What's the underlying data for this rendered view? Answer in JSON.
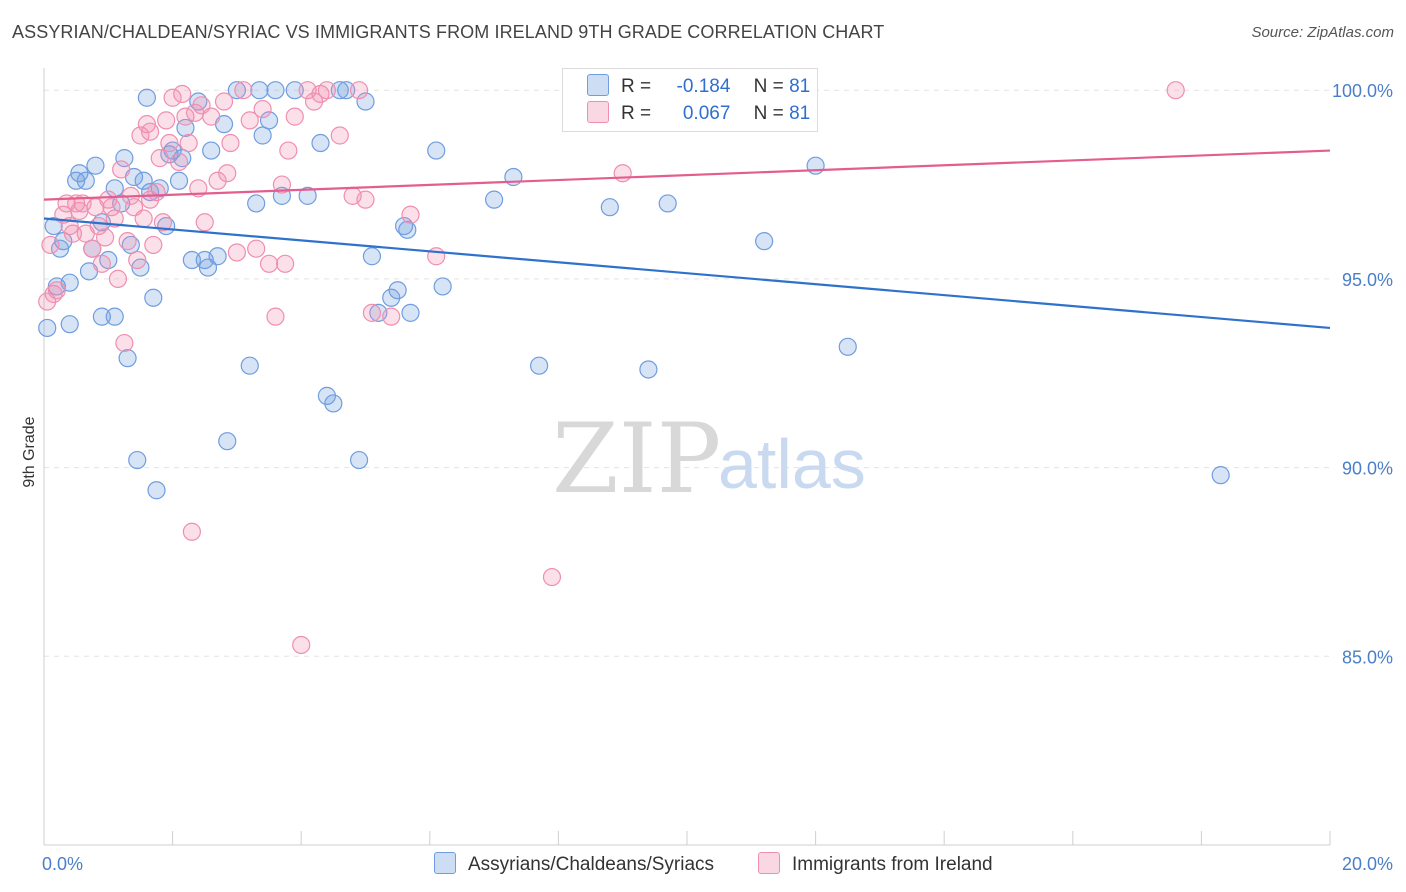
{
  "title": "ASSYRIAN/CHALDEAN/SYRIAC VS IMMIGRANTS FROM IRELAND 9TH GRADE CORRELATION CHART",
  "source": "Source: ZipAtlas.com",
  "watermark": {
    "zip": "ZIP",
    "atlas": "atlas"
  },
  "legend": {
    "r_label": "R =",
    "n_label": "N =",
    "rows": [
      {
        "r": "-0.184",
        "n": "81"
      },
      {
        "r": "0.067",
        "n": "81"
      }
    ]
  },
  "chart_data": {
    "type": "scatter",
    "ylabel": "9th Grade",
    "xlim": [
      0,
      20
    ],
    "ylim": [
      80,
      100.8
    ],
    "y_ticks": [
      {
        "value": 100,
        "label": "100.0%"
      },
      {
        "value": 95,
        "label": "95.0%"
      },
      {
        "value": 90,
        "label": "90.0%"
      },
      {
        "value": 85,
        "label": "85.0%"
      }
    ],
    "x_tick_labels": [
      {
        "value": 0,
        "label": "0.0%"
      },
      {
        "value": 20,
        "label": "20.0%"
      }
    ],
    "x_minor_ticks": [
      0,
      2,
      4,
      6,
      8,
      10,
      12,
      14,
      16,
      18,
      20
    ],
    "grid": true,
    "legend_placement": "top-center",
    "series": [
      {
        "name": "Assyrians/Chaldeans/Syriacs",
        "color": "#6f9de0",
        "fill": "rgba(111,157,224,0.28)",
        "trend": {
          "x": [
            0,
            20
          ],
          "y": [
            96.6,
            93.7
          ],
          "color": "#2f72cc"
        },
        "points": [
          [
            0.15,
            96.4
          ],
          [
            0.2,
            94.8
          ],
          [
            0.25,
            95.8
          ],
          [
            0.3,
            96.0
          ],
          [
            0.4,
            93.8
          ],
          [
            0.4,
            94.9
          ],
          [
            0.5,
            97.6
          ],
          [
            0.55,
            97.8
          ],
          [
            0.65,
            97.6
          ],
          [
            0.7,
            95.2
          ],
          [
            0.75,
            95.8
          ],
          [
            0.8,
            98.0
          ],
          [
            0.9,
            96.5
          ],
          [
            0.9,
            94.0
          ],
          [
            1.0,
            95.5
          ],
          [
            1.1,
            97.4
          ],
          [
            1.1,
            94.0
          ],
          [
            1.2,
            97.0
          ],
          [
            1.25,
            98.2
          ],
          [
            1.3,
            92.9
          ],
          [
            1.35,
            95.9
          ],
          [
            1.4,
            97.7
          ],
          [
            1.45,
            90.2
          ],
          [
            1.5,
            95.3
          ],
          [
            1.55,
            97.6
          ],
          [
            1.6,
            99.8
          ],
          [
            1.65,
            97.3
          ],
          [
            1.7,
            94.5
          ],
          [
            1.75,
            89.4
          ],
          [
            1.8,
            97.4
          ],
          [
            1.9,
            96.4
          ],
          [
            1.95,
            98.3
          ],
          [
            2.0,
            98.4
          ],
          [
            2.1,
            97.6
          ],
          [
            2.15,
            98.2
          ],
          [
            2.2,
            99.0
          ],
          [
            2.3,
            95.5
          ],
          [
            2.4,
            99.7
          ],
          [
            2.5,
            95.5
          ],
          [
            2.55,
            95.3
          ],
          [
            2.6,
            98.4
          ],
          [
            2.7,
            95.6
          ],
          [
            2.8,
            99.1
          ],
          [
            2.85,
            90.7
          ],
          [
            3.0,
            100.0
          ],
          [
            3.2,
            92.7
          ],
          [
            3.3,
            97.0
          ],
          [
            3.35,
            100.0
          ],
          [
            3.4,
            98.8
          ],
          [
            3.5,
            99.2
          ],
          [
            3.7,
            97.2
          ],
          [
            3.9,
            100.0
          ],
          [
            4.1,
            97.2
          ],
          [
            4.3,
            98.6
          ],
          [
            4.4,
            91.9
          ],
          [
            4.5,
            91.7
          ],
          [
            4.7,
            100.0
          ],
          [
            4.9,
            90.2
          ],
          [
            5.0,
            99.7
          ],
          [
            5.1,
            95.6
          ],
          [
            5.2,
            94.1
          ],
          [
            5.4,
            94.5
          ],
          [
            5.5,
            94.7
          ],
          [
            5.6,
            96.4
          ],
          [
            5.65,
            96.3
          ],
          [
            5.7,
            94.1
          ],
          [
            6.1,
            98.4
          ],
          [
            6.2,
            94.8
          ],
          [
            7.0,
            97.1
          ],
          [
            7.3,
            97.7
          ],
          [
            7.7,
            92.7
          ],
          [
            8.8,
            96.9
          ],
          [
            9.4,
            92.6
          ],
          [
            9.7,
            97.0
          ],
          [
            11.2,
            96.0
          ],
          [
            12.0,
            98.0
          ],
          [
            12.5,
            93.2
          ],
          [
            18.3,
            89.8
          ],
          [
            0.05,
            93.7
          ],
          [
            3.6,
            100.0
          ],
          [
            4.6,
            100.0
          ]
        ]
      },
      {
        "name": "Immigrants from Ireland",
        "color": "#ef8fb0",
        "fill": "rgba(239,143,176,0.28)",
        "trend": {
          "x": [
            0,
            20
          ],
          "y": [
            97.1,
            98.4
          ],
          "color": "#e45d8f"
        },
        "points": [
          [
            0.05,
            94.4
          ],
          [
            0.1,
            95.9
          ],
          [
            0.2,
            94.7
          ],
          [
            0.3,
            96.7
          ],
          [
            0.35,
            97.0
          ],
          [
            0.4,
            96.4
          ],
          [
            0.5,
            97.0
          ],
          [
            0.55,
            96.8
          ],
          [
            0.6,
            97.0
          ],
          [
            0.65,
            96.2
          ],
          [
            0.75,
            95.8
          ],
          [
            0.8,
            96.9
          ],
          [
            0.85,
            96.4
          ],
          [
            0.9,
            95.4
          ],
          [
            1.0,
            97.1
          ],
          [
            1.05,
            96.9
          ],
          [
            1.1,
            96.6
          ],
          [
            1.15,
            95.0
          ],
          [
            1.2,
            97.9
          ],
          [
            1.25,
            93.3
          ],
          [
            1.3,
            96.0
          ],
          [
            1.35,
            97.2
          ],
          [
            1.4,
            96.9
          ],
          [
            1.45,
            95.5
          ],
          [
            1.5,
            98.8
          ],
          [
            1.55,
            96.6
          ],
          [
            1.6,
            99.1
          ],
          [
            1.65,
            97.1
          ],
          [
            1.7,
            95.9
          ],
          [
            1.75,
            97.3
          ],
          [
            1.8,
            98.2
          ],
          [
            1.85,
            96.5
          ],
          [
            1.9,
            99.2
          ],
          [
            1.95,
            98.6
          ],
          [
            2.0,
            99.8
          ],
          [
            2.1,
            98.1
          ],
          [
            2.15,
            99.9
          ],
          [
            2.2,
            99.3
          ],
          [
            2.25,
            98.6
          ],
          [
            2.3,
            88.3
          ],
          [
            2.4,
            97.4
          ],
          [
            2.45,
            99.6
          ],
          [
            2.5,
            96.5
          ],
          [
            2.6,
            99.3
          ],
          [
            2.7,
            97.6
          ],
          [
            2.8,
            99.7
          ],
          [
            2.9,
            98.6
          ],
          [
            3.0,
            95.7
          ],
          [
            3.2,
            99.2
          ],
          [
            3.3,
            95.8
          ],
          [
            3.4,
            99.5
          ],
          [
            3.5,
            95.4
          ],
          [
            3.6,
            94.0
          ],
          [
            3.7,
            97.5
          ],
          [
            3.75,
            95.4
          ],
          [
            3.9,
            99.3
          ],
          [
            4.0,
            85.3
          ],
          [
            4.1,
            100.0
          ],
          [
            4.2,
            99.7
          ],
          [
            4.4,
            100.0
          ],
          [
            4.6,
            98.8
          ],
          [
            4.8,
            97.2
          ],
          [
            5.1,
            94.1
          ],
          [
            5.4,
            94.0
          ],
          [
            5.7,
            96.7
          ],
          [
            6.1,
            95.6
          ],
          [
            7.9,
            87.1
          ],
          [
            9.0,
            97.8
          ],
          [
            11.5,
            100.0
          ],
          [
            17.6,
            100.0
          ],
          [
            0.15,
            94.6
          ],
          [
            0.45,
            96.2
          ],
          [
            1.65,
            98.9
          ],
          [
            2.35,
            99.4
          ],
          [
            2.85,
            97.8
          ],
          [
            3.1,
            100.0
          ],
          [
            3.8,
            98.4
          ],
          [
            4.3,
            99.9
          ],
          [
            4.9,
            100.0
          ],
          [
            5.0,
            97.1
          ],
          [
            0.95,
            96.1
          ]
        ]
      }
    ]
  }
}
